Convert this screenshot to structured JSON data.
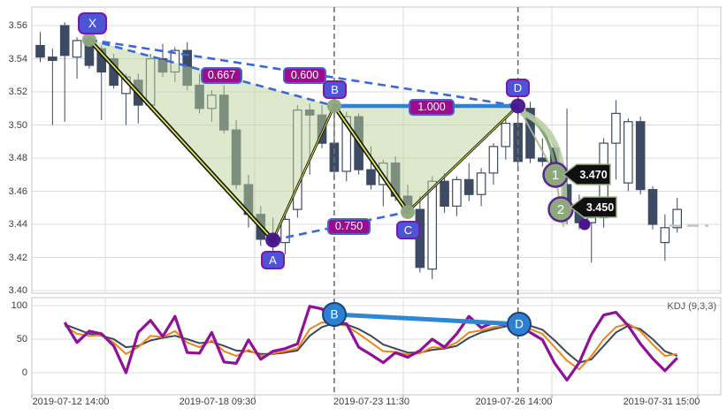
{
  "colors": {
    "candle": "#3d4a63",
    "candle_up_fill": "#ffffff",
    "grid": "#dcdcdc",
    "panel_border": "#cfcfcf",
    "pattern_fill": "#bbd199",
    "pattern_black": "#14140a",
    "pattern_yellow": "#dce75a",
    "dashed_blue": "#3a68d8",
    "solid_blue": "#2e82d6",
    "vline_gray": "#6e6e6e",
    "badge_blue": "#4d55d6",
    "badge_border": "#7a18a8",
    "ratio_magenta": "#9b0d8c",
    "sage_point": "#8ea87e",
    "purple_point": "#47148c",
    "kdj_k": "#3c4858",
    "kdj_d": "#f08418",
    "kdj_j": "#90109a",
    "kdj_marker_blue": "#2b80d4",
    "tag_bg": "#101010",
    "tag_border": "#9bb588",
    "arrow_light": "#b6cc9f",
    "arrow_dark": "#7f9c74",
    "last_price_dash": "#c4c4c8"
  },
  "chart_data": [
    {
      "type": "candlestick",
      "y_tick_labels": [
        "3.56",
        "3.54",
        "3.52",
        "3.50",
        "3.48",
        "3.46",
        "3.44",
        "3.42",
        "3.40"
      ],
      "y_ticks": [
        3.56,
        3.54,
        3.52,
        3.5,
        3.48,
        3.46,
        3.44,
        3.42,
        3.4
      ],
      "x_labels": [
        "2019-07-12 14:00",
        "2019-07-18 09:30",
        "2019-07-23 11:30",
        "2019-07-26 14:00",
        "2019-07-31 15:00"
      ],
      "ohlc": [
        [
          3.548,
          3.556,
          3.538,
          3.541
        ],
        [
          3.541,
          3.546,
          3.5,
          3.539
        ],
        [
          3.56,
          3.562,
          3.502,
          3.542
        ],
        [
          3.541,
          3.553,
          3.528,
          3.551
        ],
        [
          3.551,
          3.553,
          3.534,
          3.536
        ],
        [
          3.546,
          3.548,
          3.503,
          3.532
        ],
        [
          3.54,
          3.543,
          3.522,
          3.524
        ],
        [
          3.519,
          3.531,
          3.5,
          3.529
        ],
        [
          3.527,
          3.531,
          3.501,
          3.512
        ],
        [
          3.512,
          3.543,
          3.509,
          3.54
        ],
        [
          3.54,
          3.549,
          3.529,
          3.532
        ],
        [
          3.532,
          3.547,
          3.526,
          3.545
        ],
        [
          3.545,
          3.55,
          3.521,
          3.524
        ],
        [
          3.524,
          3.531,
          3.507,
          3.51
        ],
        [
          3.51,
          3.521,
          3.502,
          3.518
        ],
        [
          3.518,
          3.524,
          3.495,
          3.497
        ],
        [
          3.497,
          3.503,
          3.461,
          3.464
        ],
        [
          3.464,
          3.47,
          3.438,
          3.446
        ],
        [
          3.446,
          3.451,
          3.427,
          3.431
        ],
        [
          3.431,
          3.444,
          3.414,
          3.429
        ],
        [
          3.429,
          3.446,
          3.422,
          3.443
        ],
        [
          3.449,
          3.512,
          3.444,
          3.509
        ],
        [
          3.509,
          3.513,
          3.47,
          3.506
        ],
        [
          3.506,
          3.512,
          3.486,
          3.489
        ],
        [
          3.489,
          3.5115,
          3.468,
          3.472
        ],
        [
          3.472,
          3.508,
          3.466,
          3.505
        ],
        [
          3.505,
          3.507,
          3.47,
          3.473
        ],
        [
          3.473,
          3.487,
          3.461,
          3.464
        ],
        [
          3.464,
          3.479,
          3.451,
          3.477
        ],
        [
          3.477,
          3.481,
          3.454,
          3.457
        ],
        [
          3.457,
          3.464,
          3.444,
          3.449
        ],
        [
          3.449,
          3.457,
          3.411,
          3.414
        ],
        [
          3.413,
          3.469,
          3.407,
          3.466
        ],
        [
          3.466,
          3.471,
          3.447,
          3.451
        ],
        [
          3.451,
          3.469,
          3.445,
          3.467
        ],
        [
          3.467,
          3.477,
          3.454,
          3.458
        ],
        [
          3.458,
          3.474,
          3.451,
          3.471
        ],
        [
          3.471,
          3.489,
          3.464,
          3.487
        ],
        [
          3.487,
          3.504,
          3.479,
          3.501
        ],
        [
          3.501,
          3.5115,
          3.474,
          3.478
        ],
        [
          3.51,
          3.514,
          3.477,
          3.48
        ],
        [
          3.48,
          3.492,
          3.475,
          3.478
        ],
        [
          3.486,
          3.488,
          3.462,
          3.464
        ],
        [
          3.464,
          3.51,
          3.44,
          3.452
        ],
        [
          3.452,
          3.458,
          3.437,
          3.441
        ],
        [
          3.441,
          3.447,
          3.417,
          3.444
        ],
        [
          3.444,
          3.492,
          3.438,
          3.489
        ],
        [
          3.489,
          3.515,
          3.467,
          3.507
        ],
        [
          3.465,
          3.504,
          3.46,
          3.502
        ],
        [
          3.502,
          3.505,
          3.458,
          3.461
        ],
        [
          3.461,
          3.463,
          3.437,
          3.44
        ],
        [
          3.429,
          3.446,
          3.418,
          3.438
        ],
        [
          3.438,
          3.456,
          3.435,
          3.449
        ]
      ],
      "pattern": {
        "points": [
          {
            "label": "X",
            "bar": 4,
            "price": 3.5515,
            "kind": "sage"
          },
          {
            "label": "A",
            "bar": 19,
            "price": 3.4305,
            "kind": "purple"
          },
          {
            "label": "B",
            "bar": 24,
            "price": 3.5115,
            "kind": "sage"
          },
          {
            "label": "C",
            "bar": 30,
            "price": 3.4475,
            "kind": "sage"
          },
          {
            "label": "D",
            "bar": 39,
            "price": 3.5115,
            "kind": "purple"
          }
        ],
        "ratios": [
          {
            "text": "0.667",
            "on": "XB"
          },
          {
            "text": "0.600",
            "on": "XD"
          },
          {
            "text": "0.750",
            "on": "AC"
          },
          {
            "text": "1.000",
            "on": "BD"
          }
        ]
      },
      "targets": [
        {
          "label": "1",
          "price_label": "3.470",
          "price": 3.47
        },
        {
          "label": "2",
          "price_label": "3.450",
          "price": 3.45
        }
      ],
      "last_price_dash_level": 3.4395
    },
    {
      "type": "line",
      "indicator": "KDJ (9,3,3)",
      "y_tick_labels": [
        "100",
        "50",
        "0"
      ],
      "y_ticks": [
        100,
        50,
        0
      ],
      "markers": [
        {
          "label": "B",
          "bar": 24
        },
        {
          "label": "D",
          "bar": 39
        }
      ],
      "series": [
        {
          "name": "K",
          "values": [
            null,
            null,
            72,
            65,
            58,
            55,
            50,
            38,
            40,
            48,
            52,
            55,
            50,
            44,
            46,
            40,
            33,
            32,
            28,
            28,
            30,
            33,
            55,
            68,
            74,
            72,
            65,
            55,
            42,
            36,
            30,
            30,
            34,
            36,
            40,
            52,
            60,
            65,
            69,
            72,
            70,
            64,
            48,
            30,
            15,
            20,
            40,
            60,
            70,
            65,
            50,
            32,
            25
          ]
        },
        {
          "name": "D",
          "values": [
            null,
            null,
            70,
            58,
            55,
            56,
            45,
            28,
            38,
            55,
            53,
            62,
            45,
            38,
            48,
            32,
            25,
            34,
            25,
            29,
            32,
            36,
            65,
            75,
            73,
            70,
            58,
            45,
            32,
            31,
            27,
            29,
            38,
            37,
            45,
            60,
            63,
            68,
            70,
            71,
            65,
            58,
            38,
            18,
            5,
            25,
            50,
            68,
            73,
            62,
            42,
            25,
            28
          ]
        },
        {
          "name": "J",
          "values": [
            null,
            null,
            75,
            45,
            62,
            58,
            40,
            0,
            60,
            78,
            54,
            84,
            30,
            29,
            60,
            16,
            14,
            49,
            20,
            32,
            36,
            43,
            99,
            95,
            73,
            73,
            38,
            27,
            15,
            30,
            23,
            33,
            50,
            38,
            58,
            84,
            67,
            75,
            70,
            71,
            60,
            49,
            14,
            -11,
            15,
            57,
            86,
            90,
            70,
            43,
            21,
            3,
            22
          ]
        }
      ]
    }
  ]
}
